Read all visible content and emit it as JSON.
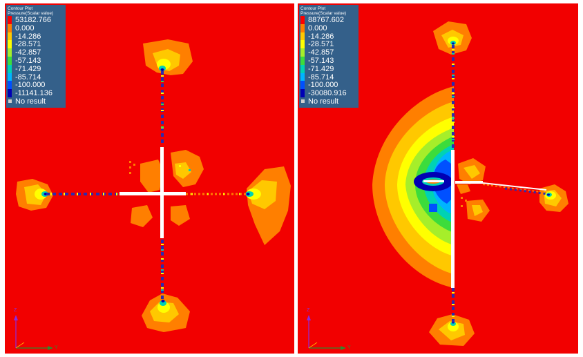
{
  "viewports": [
    {
      "name": "left",
      "legend": {
        "title_line1": "Contour Plot",
        "title_line2": "Pressure(Scalar value)",
        "levels": [
          {
            "label": "53182.766",
            "color": "#ff0000"
          },
          {
            "label": "0.000",
            "color": "#ff7f00"
          },
          {
            "label": "-14.286",
            "color": "#ffc800"
          },
          {
            "label": "-28.571",
            "color": "#ffff00"
          },
          {
            "label": "-42.857",
            "color": "#a6ee2a"
          },
          {
            "label": "-57.143",
            "color": "#3cdc3c"
          },
          {
            "label": "-71.429",
            "color": "#00d2b4"
          },
          {
            "label": "-85.714",
            "color": "#00b4ff"
          },
          {
            "label": "-100.000",
            "color": "#0050ff"
          },
          {
            "label": "-11141.136",
            "color": "#0000b4"
          }
        ],
        "no_result": "No result"
      },
      "axis": {
        "vertical": "Z",
        "horizontal": "Y"
      }
    },
    {
      "name": "right",
      "legend": {
        "title_line1": "Contour Plot",
        "title_line2": "Pressure(Scalar value)",
        "levels": [
          {
            "label": "88767.602",
            "color": "#ff0000"
          },
          {
            "label": "0.000",
            "color": "#ff7f00"
          },
          {
            "label": "-14.286",
            "color": "#ffc800"
          },
          {
            "label": "-28.571",
            "color": "#ffff00"
          },
          {
            "label": "-42.857",
            "color": "#a6ee2a"
          },
          {
            "label": "-57.143",
            "color": "#3cdc3c"
          },
          {
            "label": "-71.429",
            "color": "#00d2b4"
          },
          {
            "label": "-85.714",
            "color": "#00b4ff"
          },
          {
            "label": "-100.000",
            "color": "#0050ff"
          },
          {
            "label": "-30080.916",
            "color": "#0000b4"
          }
        ],
        "no_result": "No result"
      },
      "axis": {
        "vertical": "Z",
        "horizontal": "Y"
      }
    }
  ],
  "colors": {
    "background_field": "#f20000",
    "orange": "#ff7f00",
    "amber": "#ffc800",
    "yellow": "#ffff00",
    "lime": "#a6ee2a",
    "green": "#3cdc3c",
    "teal": "#00d2b4",
    "cyan": "#00b4ff",
    "blue": "#0050ff",
    "navy": "#0000b4",
    "axis_vertical": "#8a2be2",
    "axis_horizontal": "#2e8b2e",
    "legend_panel": "#34608a"
  }
}
